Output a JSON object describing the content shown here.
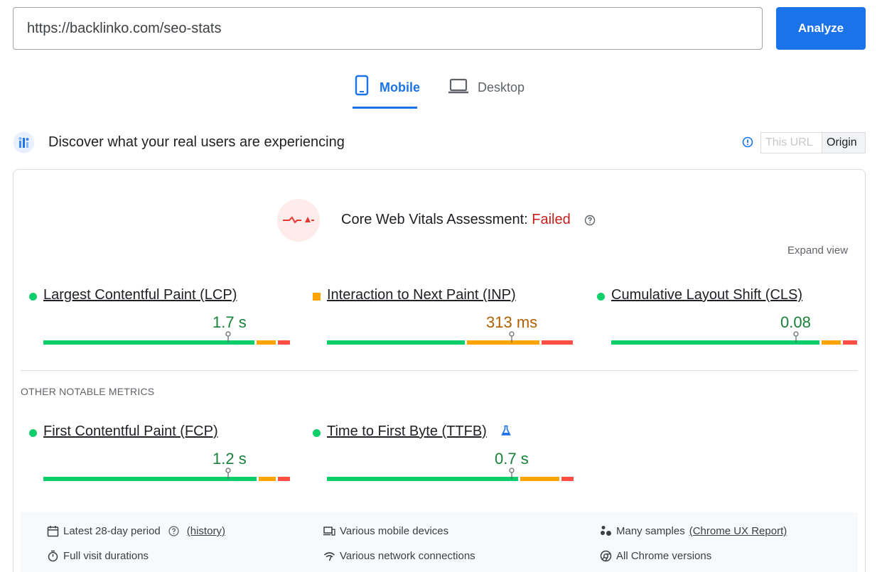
{
  "url_bar": {
    "value": "https://backlinko.com/seo-stats",
    "analyze_label": "Analyze",
    "accent": "#1a73e8"
  },
  "tabs": [
    {
      "label": "Mobile",
      "icon": "phone-icon",
      "active": true
    },
    {
      "label": "Desktop",
      "icon": "laptop-icon",
      "active": false
    }
  ],
  "section": {
    "title": "Discover what your real users are experiencing",
    "toggle": {
      "this_url": "This URL",
      "origin": "Origin",
      "selected": "Origin"
    }
  },
  "assessment": {
    "prefix": "Core Web Vitals Assessment: ",
    "status": "Failed",
    "status_color": "#c5221f",
    "expand_label": "Expand view"
  },
  "core_metrics": [
    {
      "name": "Largest Contentful Paint (LCP)",
      "value": "1.7 s",
      "status": "good",
      "distribution": [
        0.87,
        0.08,
        0.05
      ]
    },
    {
      "name": "Interaction to Next Paint (INP)",
      "value": "313 ms",
      "status": "needs-improvement",
      "distribution": [
        0.57,
        0.3,
        0.13
      ]
    },
    {
      "name": "Cumulative Layout Shift (CLS)",
      "value": "0.08",
      "status": "good",
      "distribution": [
        0.86,
        0.08,
        0.06
      ]
    }
  ],
  "other_label": "OTHER NOTABLE METRICS",
  "other_metrics": [
    {
      "name": "First Contentful Paint (FCP)",
      "value": "1.2 s",
      "status": "good",
      "distribution": [
        0.88,
        0.07,
        0.05
      ]
    },
    {
      "name": "Time to First Byte (TTFB)",
      "value": "0.7 s",
      "status": "good",
      "distribution": [
        0.79,
        0.16,
        0.05
      ],
      "experimental": true
    }
  ],
  "footer": {
    "period": "Latest 28-day period",
    "history": "(history)",
    "durations": "Full visit durations",
    "devices": "Various mobile devices",
    "network": "Various network connections",
    "samples": "Many samples",
    "samples_link": "(Chrome UX Report)",
    "versions": "All Chrome versions"
  },
  "colors": {
    "good": "#0cce6b",
    "needs_improvement": "#ffa400",
    "poor": "#ff4e42"
  }
}
